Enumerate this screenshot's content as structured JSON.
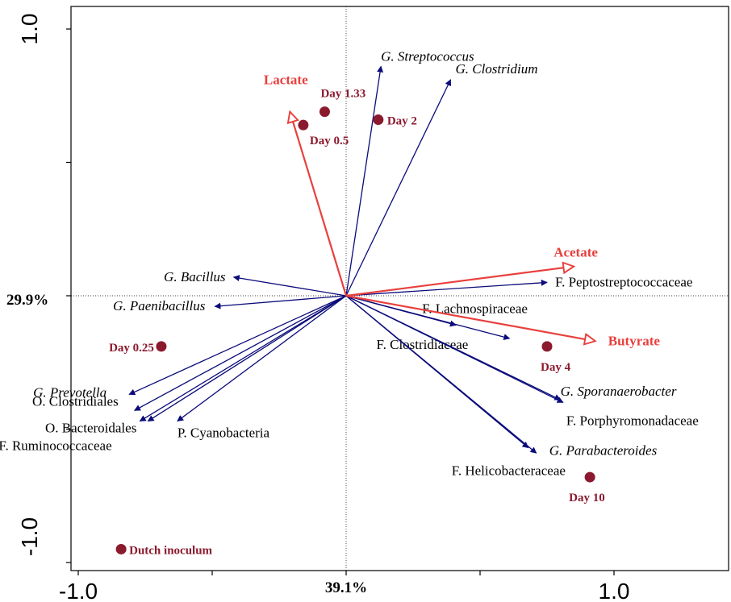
{
  "chart_data": {
    "type": "scatter",
    "subtype": "ordination biplot (RDA triplot)",
    "x_axis": {
      "range": [
        -1.0,
        1.0
      ],
      "tick_labels": [
        "-1.0",
        "1.0"
      ],
      "center_label": "39.1%"
    },
    "y_axis": {
      "range": [
        -1.0,
        1.0
      ],
      "tick_labels": [
        "-1.0",
        "1.0"
      ],
      "center_label": "29.9%"
    },
    "colors": {
      "taxa": "#0b0b7a",
      "variables": "#e8403e",
      "samples": "#8b1a2e",
      "axes": "#000000"
    },
    "taxa_arrows": [
      {
        "label": "G. Streptococcus",
        "x": 0.13,
        "y": 0.86,
        "italic": true
      },
      {
        "label": "G. Clostridium",
        "x": 0.39,
        "y": 0.81,
        "italic": true
      },
      {
        "label": "G. Bacillus",
        "x": -0.42,
        "y": 0.07,
        "italic": true
      },
      {
        "label": "G. Paenibacillus",
        "x": -0.49,
        "y": -0.04,
        "italic": true
      },
      {
        "label": "F. Peptostreptococcaceae",
        "x": 0.75,
        "y": 0.05,
        "italic": false
      },
      {
        "label": "F. Lachnospiraceae",
        "x": 0.41,
        "y": -0.11,
        "italic": false
      },
      {
        "label": "F. Clostridiaceae",
        "x": 0.61,
        "y": -0.16,
        "italic": false
      },
      {
        "label": "G. Sporanaerobacter",
        "x": 0.8,
        "y": -0.39,
        "italic": true
      },
      {
        "label": "F. Porphyromonadaceae",
        "x": 0.81,
        "y": -0.4,
        "italic": false
      },
      {
        "label": "G. Parabacteroides",
        "x": 0.71,
        "y": -0.59,
        "italic": true
      },
      {
        "label": "F. Helicobacteraceae",
        "x": 0.68,
        "y": -0.57,
        "italic": false
      },
      {
        "label": "G. Prevotella",
        "x": -0.81,
        "y": -0.37,
        "italic": true
      },
      {
        "label": "O. Clostridiales",
        "x": -0.79,
        "y": -0.43,
        "italic": false
      },
      {
        "label": "O. Bacteroidales",
        "x": -0.74,
        "y": -0.47,
        "italic": false
      },
      {
        "label": "F. Ruminococcaceae",
        "x": -0.77,
        "y": -0.47,
        "italic": false
      },
      {
        "label": "P. Cyanobacteria",
        "x": -0.63,
        "y": -0.47,
        "italic": false
      }
    ],
    "variable_arrows": [
      {
        "label": "Lactate",
        "x": -0.21,
        "y": 0.69
      },
      {
        "label": "Acetate",
        "x": 0.85,
        "y": 0.11
      },
      {
        "label": "Butyrate",
        "x": 0.93,
        "y": -0.17
      }
    ],
    "samples": [
      {
        "label": "Day 0.5",
        "x": -0.16,
        "y": 0.64
      },
      {
        "label": "Day 1.33",
        "x": -0.08,
        "y": 0.69
      },
      {
        "label": "Day 2",
        "x": 0.12,
        "y": 0.66
      },
      {
        "label": "Day 0.25",
        "x": -0.69,
        "y": -0.19
      },
      {
        "label": "Day 4",
        "x": 0.75,
        "y": -0.19
      },
      {
        "label": "Day 10",
        "x": 0.91,
        "y": -0.68
      },
      {
        "label": "Dutch inoculum",
        "x": -0.84,
        "y": -0.95
      }
    ]
  }
}
